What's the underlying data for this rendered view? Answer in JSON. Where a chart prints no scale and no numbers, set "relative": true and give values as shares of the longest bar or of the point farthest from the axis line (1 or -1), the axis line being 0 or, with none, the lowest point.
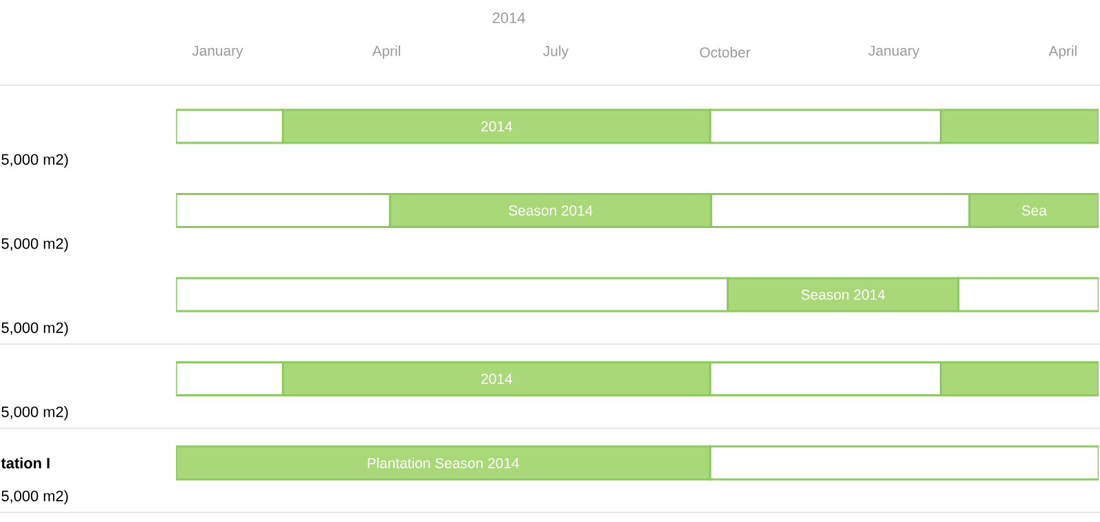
{
  "chart_data": {
    "type": "bar",
    "orientation": "horizontal",
    "stacked": true,
    "relative": true,
    "categories": [
      "5,000 m2)",
      "5,000 m2)",
      "5,000 m2)",
      "5,000 m2)",
      "5,000 m2)"
    ],
    "annotations": [
      "2014",
      "January",
      "April",
      "July",
      "October",
      "January",
      "April",
      "tation I"
    ],
    "series": [
      {
        "color": "#ffffff",
        "values": [
          0.116,
          0.232,
          0.598,
          0.116,
          null
        ]
      },
      {
        "name": "2014",
        "color": "#a8d878",
        "values": [
          0.463,
          null,
          null,
          0.463,
          null
        ]
      },
      {
        "name": "Season 2014",
        "color": "#a8d878",
        "values": [
          null,
          0.348,
          0.25,
          null,
          null
        ]
      },
      {
        "name": "Plantation Season 2014",
        "color": "#a8d878",
        "values": [
          null,
          null,
          null,
          null,
          0.579
        ]
      },
      {
        "color": "#ffffff",
        "values": [
          0.25,
          0.28,
          0.152,
          0.25,
          0.421
        ]
      },
      {
        "color": "#a8d878",
        "values": [
          0.171,
          null,
          null,
          0.171,
          null
        ]
      },
      {
        "name": "Sea",
        "color": "#a8d878",
        "values": [
          null,
          0.14,
          null,
          null,
          null
        ]
      }
    ]
  }
}
